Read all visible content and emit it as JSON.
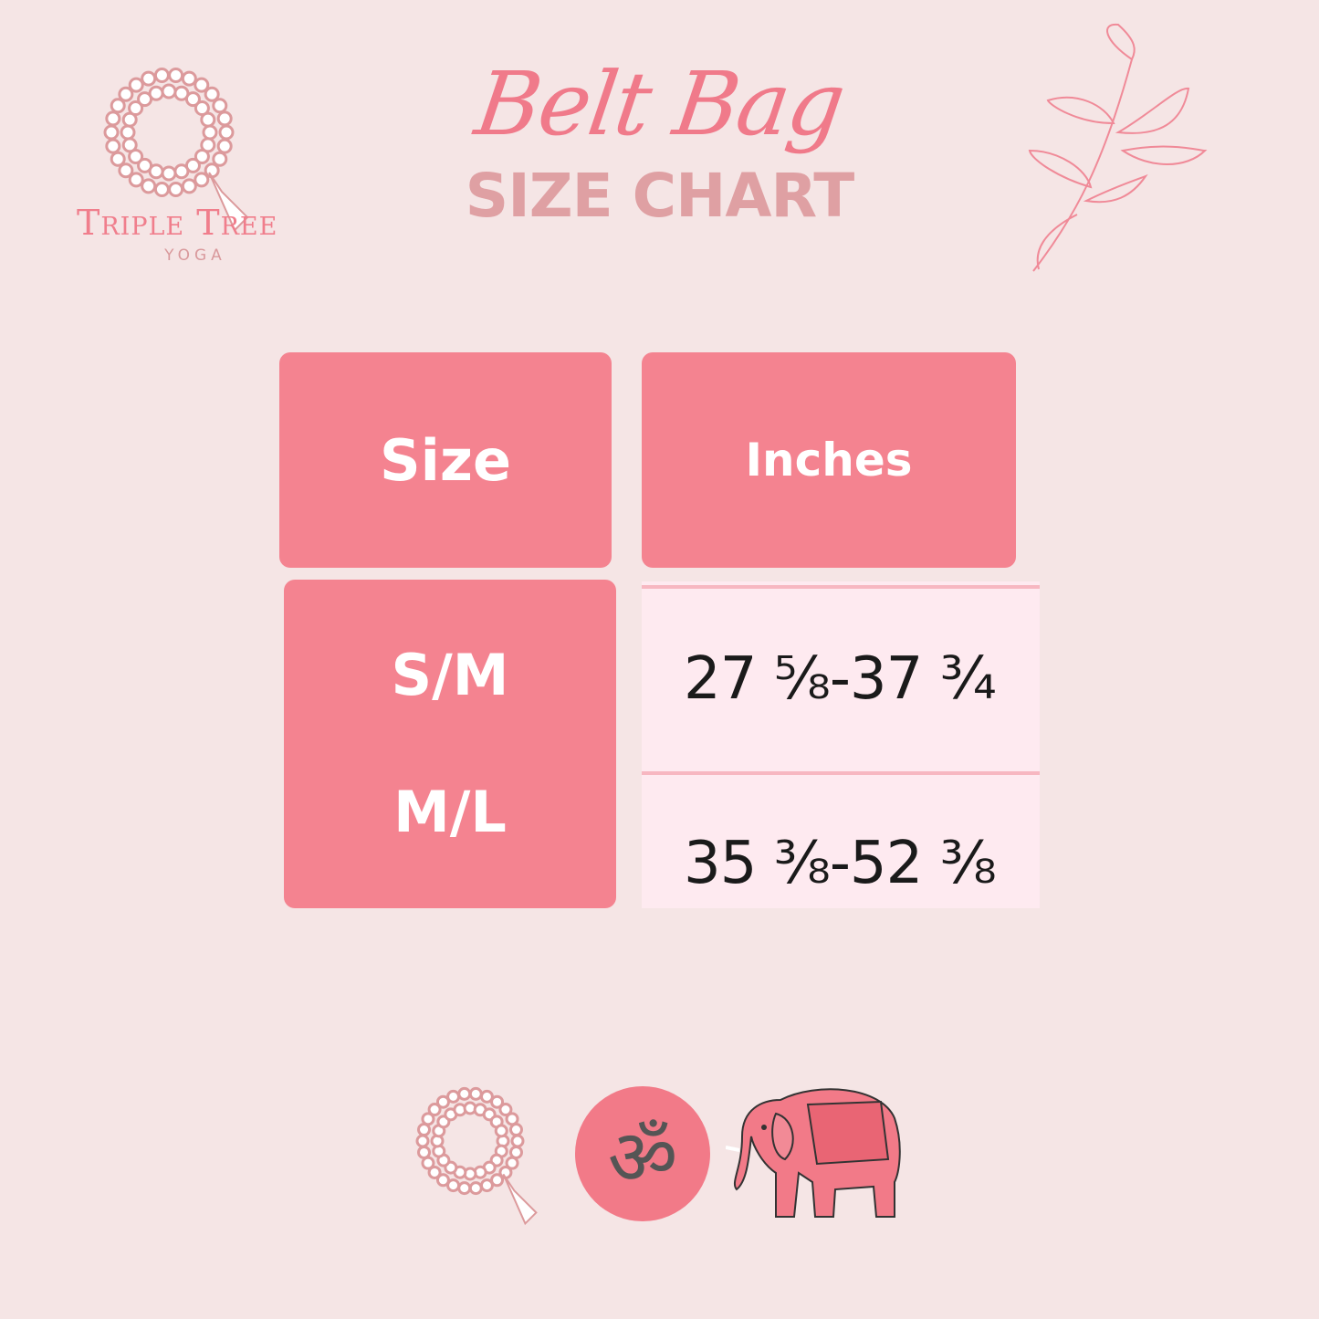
{
  "header": {
    "title_script": "Belt Bag",
    "title": "SIZE CHART"
  },
  "brand": {
    "name": "Triple Tree",
    "sub": "YOGA"
  },
  "table": {
    "headers": [
      "Size",
      "Inches"
    ],
    "rows": [
      {
        "size": "S/M",
        "inches": "27 ⅝-37 ¾"
      },
      {
        "size": "M/L",
        "inches": "35 ⅜-52 ⅜"
      }
    ]
  },
  "footer": {
    "icons": [
      "mala-beads-icon",
      "om-icon",
      "elephant-icon"
    ],
    "om_glyph": "ॐ"
  },
  "colors": {
    "background": "#f5e5e5",
    "accent": "#f48390",
    "value_cell": "#feeaf0",
    "subtitle": "#dfa0a3"
  }
}
